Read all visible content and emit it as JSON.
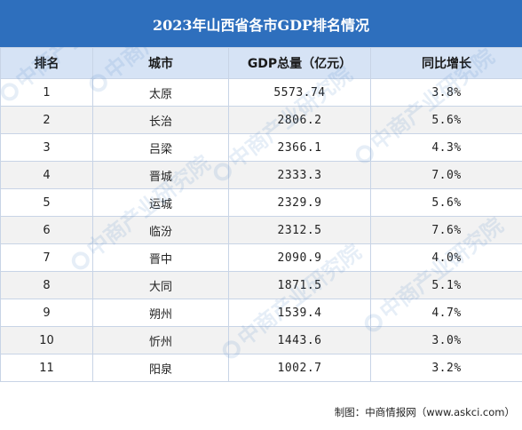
{
  "title": "2023年山西省各市GDP排名情况",
  "headers": {
    "rank": "排名",
    "city": "城市",
    "gdp": "GDP总量（亿元）",
    "growth": "同比增长"
  },
  "rows": [
    {
      "rank": "1",
      "city": "太原",
      "gdp": "5573.74",
      "growth": "3.8%"
    },
    {
      "rank": "2",
      "city": "长治",
      "gdp": "2806.2",
      "growth": "5.6%"
    },
    {
      "rank": "3",
      "city": "吕梁",
      "gdp": "2366.1",
      "growth": "4.3%"
    },
    {
      "rank": "4",
      "city": "晋城",
      "gdp": "2333.3",
      "growth": "7.0%"
    },
    {
      "rank": "5",
      "city": "运城",
      "gdp": "2329.9",
      "growth": "5.6%"
    },
    {
      "rank": "6",
      "city": "临汾",
      "gdp": "2312.5",
      "growth": "7.6%"
    },
    {
      "rank": "7",
      "city": "晋中",
      "gdp": "2090.9",
      "growth": "4.0%"
    },
    {
      "rank": "8",
      "city": "大同",
      "gdp": "1871.5",
      "growth": "5.1%"
    },
    {
      "rank": "9",
      "city": "朔州",
      "gdp": "1539.4",
      "growth": "4.7%"
    },
    {
      "rank": "10",
      "city": "忻州",
      "gdp": "1443.6",
      "growth": "3.0%"
    },
    {
      "rank": "11",
      "city": "阳泉",
      "gdp": "1002.7",
      "growth": "3.2%"
    }
  ],
  "source": "制图：中商情报网（www.askci.com）",
  "watermark": "中商产业研究院",
  "colors": {
    "title_bg": "#2e6fbd",
    "header_bg": "#d6e3f5",
    "stripe_bg": "#f2f2f2"
  }
}
